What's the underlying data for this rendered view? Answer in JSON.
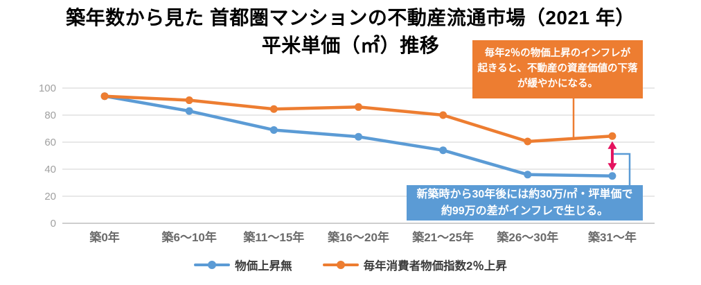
{
  "title": {
    "line1": "築年数から見た 首都圏マンションの不動産流通市場（2021 年）",
    "line2": "平米単価（㎡）推移"
  },
  "chart_data": {
    "type": "line",
    "title": "築年数から見た 首都圏マンションの不動産流通市場（2021 年） 平米単価（㎡）推移",
    "categories": [
      "築0年",
      "築6～10年",
      "築11～15年",
      "築16～20年",
      "築21～25年",
      "築26～30年",
      "築31～年"
    ],
    "series": [
      {
        "name": "物価上昇無",
        "color": "#5b9bd5",
        "values": [
          94,
          83,
          69,
          64,
          54,
          36,
          35
        ]
      },
      {
        "name": "毎年消費者物価指数2％上昇",
        "color": "#ed7d31",
        "values": [
          94,
          91,
          84.5,
          86,
          80,
          60.5,
          64.5
        ]
      }
    ],
    "xlabel": "",
    "ylabel": "",
    "ylim": [
      0,
      100
    ],
    "yticks": [
      0,
      20,
      40,
      60,
      80,
      100
    ],
    "grid": true,
    "legend_position": "bottom",
    "marker": "circle"
  },
  "annotations": {
    "inflation_box": {
      "text": "毎年2％の物価上昇のインフレが\n起きると、不動産の資産価値の下落\nが緩やかになる。",
      "bg_color": "#ed7d31"
    },
    "gap_box": {
      "text": "新築時から30年後には約30万/㎡・坪単価で\n約99万の差がインフレで生じる。",
      "bg_color": "#5b9bd5"
    },
    "gap_arrow_color": "#e4125e"
  }
}
